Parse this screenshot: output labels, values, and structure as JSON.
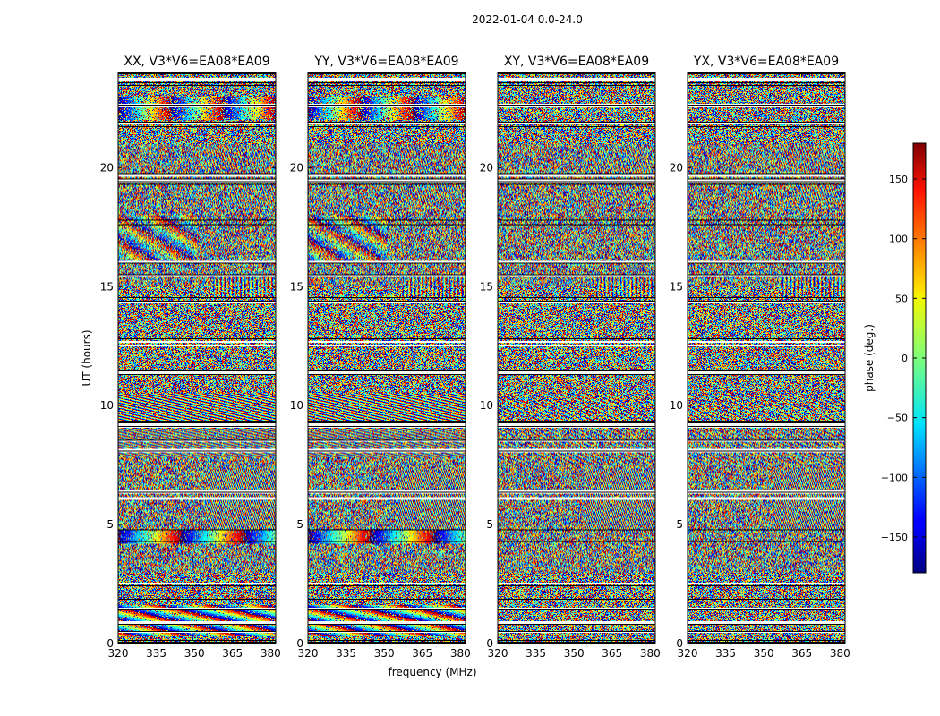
{
  "figure": {
    "suptitle": "2022-01-04 0.0-24.0"
  },
  "chart_data": {
    "type": "heatmap",
    "shared": {
      "xlabel": "frequency (MHz)",
      "ylabel": "UT (hours)",
      "xlim": [
        320,
        382
      ],
      "ylim": [
        0,
        24
      ],
      "xticks": [
        320,
        335,
        350,
        365,
        380
      ],
      "yticks": [
        0,
        5,
        10,
        15,
        20
      ],
      "colormap": "jet"
    },
    "panels": [
      {
        "title": "XX, V3*V6=EA08*EA09",
        "pol": "XX",
        "ticks": {
          "x": [
            "320",
            "335",
            "350",
            "365",
            "380"
          ],
          "y": [
            "0",
            "5",
            "10",
            "15",
            "20"
          ]
        }
      },
      {
        "title": "YY, V3*V6=EA08*EA09",
        "pol": "YY",
        "ticks": {
          "x": [
            "320",
            "335",
            "350",
            "365",
            "380"
          ],
          "y": [
            "0",
            "5",
            "10",
            "15",
            "20"
          ]
        }
      },
      {
        "title": "XY, V3*V6=EA08*EA09",
        "pol": "XY",
        "ticks": {
          "x": [
            "320",
            "335",
            "350",
            "365",
            "380"
          ],
          "y": [
            "0",
            "5",
            "10",
            "15",
            "20"
          ]
        }
      },
      {
        "title": "YX, V3*V6=EA08*EA09",
        "pol": "YX",
        "ticks": {
          "x": [
            "320",
            "335",
            "350",
            "365",
            "380"
          ],
          "y": [
            "0",
            "5",
            "10",
            "15",
            "20"
          ]
        }
      }
    ],
    "colorbar": {
      "label": "phase (deg.)",
      "range": [
        -180,
        180
      ],
      "ticks": [
        150,
        100,
        50,
        0,
        -50,
        -100,
        -150
      ],
      "tick_labels": [
        "150",
        "100",
        "50",
        "0",
        "−50",
        "−100",
        "−150"
      ]
    }
  }
}
